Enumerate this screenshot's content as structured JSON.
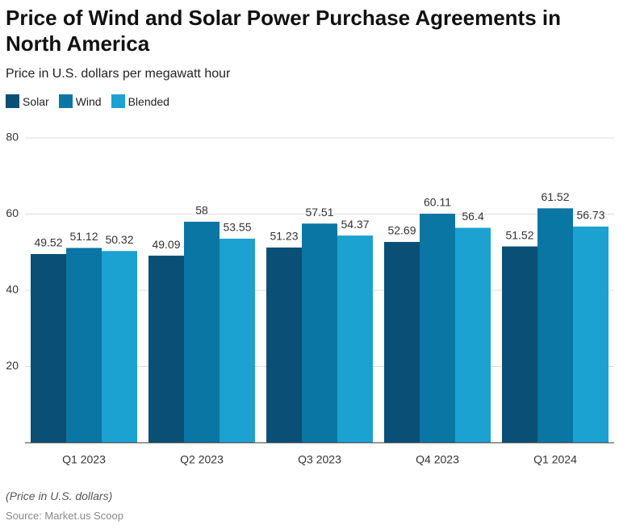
{
  "chart_data": {
    "type": "bar",
    "title": "Price of Wind and Solar Power Purchase Agreements in North America",
    "subtitle": "Price in U.S. dollars per megawatt hour",
    "categories": [
      "Q1 2023",
      "Q2 2023",
      "Q3 2023",
      "Q4 2023",
      "Q1 2024"
    ],
    "series": [
      {
        "name": "Solar",
        "color": "#0a4f75",
        "values": [
          49.52,
          49.09,
          51.23,
          52.69,
          51.52
        ]
      },
      {
        "name": "Wind",
        "color": "#0a76a3",
        "values": [
          51.12,
          58,
          57.51,
          60.11,
          61.52
        ]
      },
      {
        "name": "Blended",
        "color": "#1ba2d0",
        "values": [
          50.32,
          53.55,
          54.37,
          56.4,
          56.73
        ]
      }
    ],
    "ylim": [
      0,
      80
    ],
    "yticks": [
      20,
      40,
      60,
      80
    ],
    "grid": true,
    "note": "(Price in U.S. dollars)",
    "source": "Source: Market.us Scoop"
  }
}
